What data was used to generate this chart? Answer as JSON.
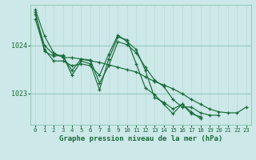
{
  "background_color": "#cce8e8",
  "plot_bg_color": "#cce8e8",
  "grid_major_color": "#99ccbb",
  "grid_minor_color": "#b8ddd4",
  "line_color": "#1a6b3a",
  "title": "Graphe pression niveau de la mer (hPa)",
  "title_fontsize": 6.5,
  "ylabel_fontsize": 6,
  "xlabel_fontsize": 5.2,
  "ylim": [
    1022.35,
    1024.85
  ],
  "yticks": [
    1023,
    1024
  ],
  "xlim": [
    -0.5,
    23.5
  ],
  "xticks": [
    0,
    1,
    2,
    3,
    4,
    5,
    6,
    7,
    8,
    9,
    10,
    11,
    12,
    13,
    14,
    15,
    16,
    17,
    18,
    19,
    20,
    21,
    22,
    23
  ],
  "series": [
    {
      "x": [
        0,
        1,
        2,
        3,
        4,
        5,
        6,
        7,
        8,
        9,
        10,
        11,
        12,
        13,
        14,
        15,
        16,
        17,
        18,
        19,
        20,
        21,
        22,
        23
      ],
      "y": [
        1024.75,
        1024.2,
        1023.85,
        1023.75,
        1023.75,
        1023.72,
        1023.68,
        1023.65,
        1023.6,
        1023.55,
        1023.5,
        1023.45,
        1023.35,
        1023.25,
        1023.18,
        1023.1,
        1023.0,
        1022.88,
        1022.78,
        1022.68,
        1022.62,
        1022.6,
        1022.6,
        1022.72
      ]
    },
    {
      "x": [
        0,
        1,
        2,
        3,
        4,
        5,
        6,
        7,
        8,
        9,
        10,
        11,
        12,
        13,
        14,
        15,
        16,
        17,
        18,
        19,
        20
      ],
      "y": [
        1024.65,
        1024.0,
        1023.82,
        1023.78,
        1023.48,
        1023.72,
        1023.7,
        1023.22,
        1023.58,
        1024.08,
        1024.02,
        1023.85,
        1023.55,
        1023.28,
        1023.15,
        1022.88,
        1022.72,
        1022.72,
        1022.6,
        1022.55,
        1022.55
      ]
    },
    {
      "x": [
        0,
        1,
        2,
        3,
        4,
        5,
        6,
        7,
        8,
        9,
        10,
        11,
        12,
        13,
        14,
        15,
        16,
        17,
        18
      ],
      "y": [
        1024.7,
        1023.88,
        1023.78,
        1023.8,
        1023.38,
        1023.68,
        1023.62,
        1023.08,
        1023.72,
        1024.18,
        1024.12,
        1023.62,
        1023.12,
        1022.98,
        1022.78,
        1022.58,
        1022.78,
        1022.58,
        1022.52
      ]
    },
    {
      "x": [
        0,
        1,
        2,
        3,
        4,
        5,
        6,
        7,
        8,
        9,
        10,
        11,
        12,
        13,
        14,
        15,
        16,
        17,
        18
      ],
      "y": [
        1024.55,
        1023.92,
        1023.68,
        1023.68,
        1023.58,
        1023.62,
        1023.58,
        1023.38,
        1023.82,
        1024.22,
        1024.08,
        1023.92,
        1023.48,
        1022.92,
        1022.82,
        1022.68,
        1022.78,
        1022.62,
        1022.48
      ]
    }
  ]
}
